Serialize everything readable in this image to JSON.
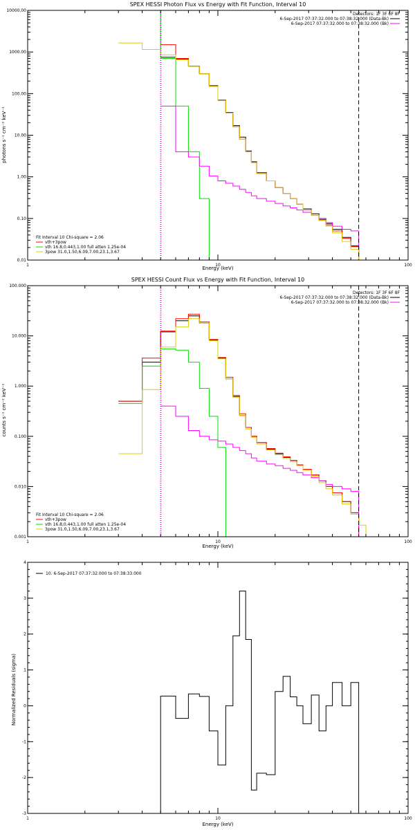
{
  "chart_data": [
    {
      "type": "line",
      "title": "SPEX HESSI Photon Flux vs Energy with Fit Function, Interval 10",
      "xlabel": "Energy (keV)",
      "ylabel": "photons s⁻¹ cm⁻² keV⁻¹",
      "xscale": "log",
      "yscale": "log",
      "xlim": [
        1,
        100
      ],
      "ylim": [
        0.01,
        10000
      ],
      "xticks": [
        "1",
        "10",
        "100"
      ],
      "yticks": [
        "0.01",
        "0.10",
        "1.00",
        "10.00",
        "100.00",
        "1000.00",
        "10000.00"
      ],
      "info_lines": [
        "Detectors: 1F 3F 6F 8F",
        "6-Sep-2017 07:37:32.000 to 07:38:32.000 (Data-Bk)",
        "6-Sep-2017 07:37:32.000 to 07:38:32.000 (Bk)"
      ],
      "legend": [
        "Fit Interval 10   Chi-square = 2.06",
        "vth+3pow",
        "vth 16.8,0.443,1.00  full atten 1.25e-04",
        "3pow 31.0,1.50,6.09,7.00,23.1,3.67"
      ],
      "vlines": [
        5.0,
        55.0
      ],
      "series": [
        {
          "name": "Data-Bk",
          "color": "#000000",
          "edges": [
            5,
            6,
            7,
            8,
            9,
            10,
            11,
            12,
            13,
            14,
            15,
            16,
            18,
            20,
            22,
            24,
            26,
            28,
            31,
            34,
            37,
            40,
            45,
            50,
            55
          ],
          "values": [
            750,
            680,
            450,
            300,
            155,
            70,
            35,
            17,
            9,
            4.2,
            2.3,
            1.25,
            0.8,
            0.55,
            0.4,
            0.3,
            0.22,
            0.17,
            0.13,
            0.095,
            0.075,
            0.055,
            0.035,
            0.022
          ]
        },
        {
          "name": "vth+3pow",
          "color": "#ff0000",
          "edges": [
            5,
            6,
            7,
            8,
            9,
            10,
            11,
            12,
            13,
            14,
            15,
            16,
            18,
            20,
            22,
            24,
            26,
            28,
            31,
            34,
            37,
            40,
            45,
            50,
            55
          ],
          "values": [
            1500,
            700,
            460,
            300,
            150,
            68,
            34,
            16,
            8,
            4,
            2.2,
            1.2,
            0.8,
            0.55,
            0.4,
            0.3,
            0.22,
            0.16,
            0.12,
            0.09,
            0.07,
            0.05,
            0.033,
            0.021
          ]
        },
        {
          "name": "vth 16.8,0.443,1.00  full atten 1.25e-04",
          "color": "#00dd00",
          "edges": [
            3,
            4,
            5,
            6,
            7,
            8,
            9,
            10
          ],
          "values": [
            10000,
            10000,
            700,
            50,
            4,
            0.3,
            0.01
          ]
        },
        {
          "name": "3pow 31.0,1.50,6.09,7.00,23.1,3.67",
          "color": "#ff00ff",
          "edges": [
            5,
            6,
            7,
            8,
            9,
            10,
            11,
            12,
            13,
            14,
            15,
            16,
            18,
            20,
            22,
            24,
            26,
            28,
            31,
            34,
            37,
            40,
            45,
            50,
            55
          ],
          "values": [
            50,
            4,
            3,
            1.8,
            1.05,
            0.8,
            0.7,
            0.6,
            0.5,
            0.42,
            0.35,
            0.3,
            0.26,
            0.23,
            0.2,
            0.18,
            0.16,
            0.14,
            0.12,
            0.1,
            0.08,
            0.065,
            0.055,
            0.05
          ]
        },
        {
          "name": "Bk",
          "color": "#ddcc00",
          "edges": [
            3,
            4,
            5,
            6,
            7,
            8,
            9,
            10,
            11,
            12,
            13,
            14,
            15,
            16,
            18,
            20,
            22,
            24,
            26,
            28,
            31,
            34,
            37,
            40,
            45,
            50,
            55,
            60
          ],
          "values": [
            1650,
            1150,
            850,
            650,
            450,
            300,
            150,
            68,
            34,
            16,
            8,
            4,
            2.2,
            1.2,
            0.8,
            0.55,
            0.4,
            0.3,
            0.22,
            0.16,
            0.12,
            0.09,
            0.065,
            0.045,
            0.028,
            0.018,
            0.01
          ]
        }
      ]
    },
    {
      "type": "line",
      "title": "SPEX HESSI Count Flux vs Energy with Fit Function, Interval 10",
      "xlabel": "Energy (keV)",
      "ylabel": "counts s⁻¹ cm⁻² keV⁻¹",
      "xscale": "log",
      "yscale": "log",
      "xlim": [
        1,
        100
      ],
      "ylim": [
        0.001,
        100
      ],
      "xticks": [
        "1",
        "10",
        "100"
      ],
      "yticks": [
        "0.001",
        "0.010",
        "0.100",
        "1.000",
        "10.000",
        "100.000"
      ],
      "info_lines": [
        "Detectors: 1F 3F 6F 8F",
        "6-Sep-2017 07:37:32.000 to 07:38:32.000 (Data-Bk)",
        "6-Sep-2017 07:37:32.000 to 07:38:32.000 (Bk)"
      ],
      "legend": [
        "Fit Interval 10   Chi-square = 2.06",
        "vth+3pow",
        "vth 16.8,0.443,1.00  full atten 1.25e-04",
        "3pow 31.0,1.50,6.09,7.00,23.1,3.67"
      ],
      "vlines": [
        5.0,
        55.0
      ],
      "series": [
        {
          "name": "Data-Bk",
          "color": "#000000",
          "edges": [
            3,
            4,
            5,
            6,
            7,
            8,
            9,
            10,
            11,
            12,
            13,
            14,
            15,
            16,
            18,
            20,
            22,
            24,
            26,
            28,
            31,
            34,
            37,
            40,
            45,
            50,
            55
          ],
          "values": [
            0.5,
            3.0,
            12,
            20,
            25,
            18,
            8.2,
            3.6,
            1.4,
            0.62,
            0.26,
            0.15,
            0.1,
            0.075,
            0.055,
            0.045,
            0.038,
            0.033,
            0.027,
            0.022,
            0.017,
            0.013,
            0.01,
            0.0075,
            0.005,
            0.003
          ]
        },
        {
          "name": "vth+3pow",
          "color": "#ff0000",
          "edges": [
            3,
            4,
            5,
            6,
            7,
            8,
            9,
            10,
            11,
            12,
            13,
            14,
            15,
            16,
            18,
            20,
            22,
            24,
            26,
            28,
            31,
            34,
            37,
            40,
            45,
            50,
            55
          ],
          "values": [
            0.5,
            3.6,
            12.5,
            22,
            27,
            19,
            8.5,
            3.7,
            1.5,
            0.65,
            0.28,
            0.15,
            0.1,
            0.075,
            0.057,
            0.046,
            0.039,
            0.033,
            0.027,
            0.022,
            0.017,
            0.013,
            0.01,
            0.0075,
            0.005,
            0.003
          ]
        },
        {
          "name": "vth 16.8,0.443,1.00  full atten 1.25e-04",
          "color": "#00dd00",
          "edges": [
            3,
            4,
            5,
            6,
            7,
            8,
            9,
            10,
            11
          ],
          "values": [
            0.45,
            2.5,
            5.5,
            5.2,
            3,
            0.9,
            0.25,
            0.06
          ]
        },
        {
          "name": "3pow 31.0,1.50,6.09,7.00,23.1,3.67",
          "color": "#ff00ff",
          "edges": [
            5,
            6,
            7,
            8,
            9,
            10,
            11,
            12,
            13,
            14,
            15,
            16,
            18,
            20,
            22,
            24,
            26,
            28,
            31,
            34,
            37,
            40,
            45,
            50,
            55
          ],
          "values": [
            0.4,
            0.25,
            0.13,
            0.1,
            0.085,
            0.08,
            0.07,
            0.06,
            0.052,
            0.045,
            0.037,
            0.032,
            0.028,
            0.026,
            0.023,
            0.021,
            0.019,
            0.017,
            0.015,
            0.013,
            0.011,
            0.01,
            0.009,
            0.008
          ]
        },
        {
          "name": "Bk",
          "color": "#ddcc00",
          "edges": [
            3,
            4,
            5,
            6,
            7,
            8,
            9,
            10,
            11,
            12,
            13,
            14,
            15,
            16,
            18,
            20,
            22,
            24,
            26,
            28,
            31,
            34,
            37,
            40,
            45,
            50,
            55,
            60,
            65
          ],
          "values": [
            0.045,
            0.85,
            6,
            15,
            22,
            18,
            8,
            3.5,
            1.4,
            0.6,
            0.26,
            0.14,
            0.095,
            0.07,
            0.053,
            0.043,
            0.036,
            0.031,
            0.026,
            0.021,
            0.016,
            0.012,
            0.009,
            0.0068,
            0.0045,
            0.0028,
            0.0017,
            0.001
          ]
        }
      ]
    },
    {
      "type": "line",
      "title": "",
      "xlabel": "Energy (keV)",
      "ylabel": "Normalized Residuals (sigma)",
      "xscale": "log",
      "yscale": "linear",
      "xlim": [
        1,
        100
      ],
      "ylim": [
        -3,
        4
      ],
      "xticks": [
        "1",
        "10",
        "100"
      ],
      "yticks": [
        "-3",
        "-2",
        "-1",
        "0",
        "1",
        "2",
        "3",
        "4"
      ],
      "legend": [
        "10.  6-Sep-2017 07:37:32.000 to 07:38:33.000"
      ],
      "series": [
        {
          "name": "10.  6-Sep-2017 07:37:32.000 to 07:38:33.000",
          "color": "#000000",
          "edges": [
            5,
            6,
            7,
            8,
            9,
            10,
            11,
            12,
            13,
            14,
            15,
            16,
            18,
            20,
            22,
            24,
            26,
            28,
            31,
            34,
            37,
            40,
            45,
            50,
            55
          ],
          "values": [
            0.27,
            -0.35,
            0.33,
            0.26,
            -0.7,
            -1.65,
            0.0,
            1.95,
            3.2,
            1.85,
            -2.35,
            -1.88,
            -1.92,
            0.4,
            0.82,
            0.25,
            0.0,
            -0.5,
            0.3,
            -0.7,
            0.0,
            0.65,
            0.0,
            0.65
          ]
        }
      ]
    }
  ]
}
